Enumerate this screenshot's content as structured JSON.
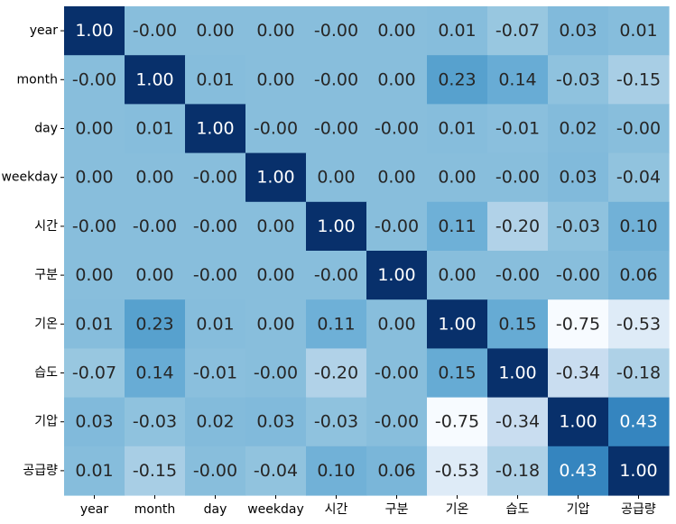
{
  "chart_data": {
    "type": "heatmap",
    "title": "",
    "xlabel": "",
    "ylabel": "",
    "x_labels": [
      "year",
      "month",
      "day",
      "weekday",
      "시간",
      "구분",
      "기온",
      "습도",
      "기압",
      "공급량"
    ],
    "y_labels": [
      "year",
      "month",
      "day",
      "weekday",
      "시간",
      "구분",
      "기온",
      "습도",
      "기압",
      "공급량"
    ],
    "values": [
      [
        1.0,
        -0.0,
        0.0,
        0.0,
        -0.0,
        0.0,
        0.01,
        -0.07,
        0.03,
        0.01
      ],
      [
        -0.0,
        1.0,
        0.01,
        0.0,
        -0.0,
        0.0,
        0.23,
        0.14,
        -0.03,
        -0.15
      ],
      [
        0.0,
        0.01,
        1.0,
        -0.0,
        -0.0,
        -0.0,
        0.01,
        -0.01,
        0.02,
        -0.0
      ],
      [
        0.0,
        0.0,
        -0.0,
        1.0,
        0.0,
        0.0,
        0.0,
        -0.0,
        0.03,
        -0.04
      ],
      [
        -0.0,
        -0.0,
        -0.0,
        0.0,
        1.0,
        -0.0,
        0.11,
        -0.2,
        -0.03,
        0.1
      ],
      [
        0.0,
        0.0,
        -0.0,
        0.0,
        -0.0,
        1.0,
        0.0,
        -0.0,
        -0.0,
        0.06
      ],
      [
        0.01,
        0.23,
        0.01,
        0.0,
        0.11,
        0.0,
        1.0,
        0.15,
        -0.75,
        -0.53
      ],
      [
        -0.07,
        0.14,
        -0.01,
        -0.0,
        -0.2,
        -0.0,
        0.15,
        1.0,
        -0.34,
        -0.18
      ],
      [
        0.03,
        -0.03,
        0.02,
        0.03,
        -0.03,
        -0.0,
        -0.75,
        -0.34,
        1.0,
        0.43
      ],
      [
        0.01,
        -0.15,
        -0.0,
        -0.04,
        0.1,
        0.06,
        -0.53,
        -0.18,
        0.43,
        1.0
      ]
    ],
    "labels": [
      [
        "1.00",
        "-0.00",
        "0.00",
        "0.00",
        "-0.00",
        "0.00",
        "0.01",
        "-0.07",
        "0.03",
        "0.01"
      ],
      [
        "-0.00",
        "1.00",
        "0.01",
        "0.00",
        "-0.00",
        "0.00",
        "0.23",
        "0.14",
        "-0.03",
        "-0.15"
      ],
      [
        "0.00",
        "0.01",
        "1.00",
        "-0.00",
        "-0.00",
        "-0.00",
        "0.01",
        "-0.01",
        "0.02",
        "-0.00"
      ],
      [
        "0.00",
        "0.00",
        "-0.00",
        "1.00",
        "0.00",
        "0.00",
        "0.00",
        "-0.00",
        "0.03",
        "-0.04"
      ],
      [
        "-0.00",
        "-0.00",
        "-0.00",
        "0.00",
        "1.00",
        "-0.00",
        "0.11",
        "-0.20",
        "-0.03",
        "0.10"
      ],
      [
        "0.00",
        "0.00",
        "-0.00",
        "0.00",
        "-0.00",
        "1.00",
        "0.00",
        "-0.00",
        "-0.00",
        "0.06"
      ],
      [
        "0.01",
        "0.23",
        "0.01",
        "0.00",
        "0.11",
        "0.00",
        "1.00",
        "0.15",
        "-0.75",
        "-0.53"
      ],
      [
        "-0.07",
        "0.14",
        "-0.01",
        "-0.00",
        "-0.20",
        "-0.00",
        "0.15",
        "1.00",
        "-0.34",
        "-0.18"
      ],
      [
        "0.03",
        "-0.03",
        "0.02",
        "0.03",
        "-0.03",
        "-0.00",
        "-0.75",
        "-0.34",
        "1.00",
        "0.43"
      ],
      [
        "0.01",
        "-0.15",
        "-0.00",
        "-0.04",
        "0.10",
        "0.06",
        "-0.53",
        "-0.18",
        "0.43",
        "1.00"
      ]
    ],
    "colormap": "Blues",
    "color_range": [
      -0.75,
      1.0
    ],
    "colorbar": false,
    "grid": false,
    "legend": "none"
  },
  "colors": {
    "low": "#f7fbff",
    "mid_low": "#c6dbef",
    "mid": "#6baed6",
    "mid_high": "#2171b5",
    "high": "#08306b",
    "text_dark": "#262626",
    "text_light": "#ffffff"
  }
}
